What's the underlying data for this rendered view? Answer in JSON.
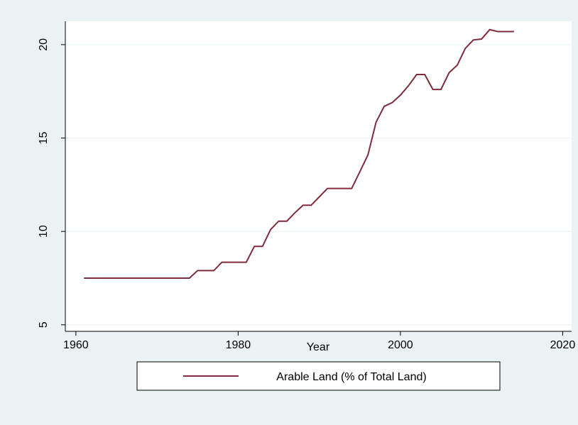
{
  "chart_data": {
    "type": "line",
    "xlabel": "Year",
    "x": [
      1961,
      1962,
      1963,
      1964,
      1965,
      1966,
      1967,
      1968,
      1969,
      1970,
      1971,
      1972,
      1973,
      1974,
      1975,
      1976,
      1977,
      1978,
      1979,
      1980,
      1981,
      1982,
      1983,
      1984,
      1985,
      1986,
      1987,
      1988,
      1989,
      1990,
      1991,
      1992,
      1993,
      1994,
      1995,
      1996,
      1997,
      1998,
      1999,
      2000,
      2001,
      2002,
      2003,
      2004,
      2005,
      2006,
      2007,
      2008,
      2009,
      2010,
      2011,
      2012,
      2013,
      2014
    ],
    "series": [
      {
        "name": "Arable Land (% of Total Land)",
        "color": "#7f2d3d",
        "values": [
          7.5,
          7.5,
          7.5,
          7.5,
          7.5,
          7.5,
          7.5,
          7.5,
          7.5,
          7.5,
          7.5,
          7.5,
          7.5,
          7.5,
          7.9,
          7.9,
          7.9,
          8.35,
          8.35,
          8.35,
          8.35,
          9.2,
          9.2,
          10.1,
          10.55,
          10.55,
          11.0,
          11.4,
          11.4,
          11.85,
          12.3,
          12.3,
          12.3,
          12.3,
          13.2,
          14.1,
          15.85,
          16.7,
          16.9,
          17.3,
          17.8,
          18.4,
          18.4,
          17.6,
          17.6,
          18.5,
          18.9,
          19.8,
          20.25,
          20.3,
          20.8,
          20.7,
          20.7,
          20.7
        ]
      }
    ],
    "xlim": [
      1958.7,
      2021.1
    ],
    "xticks": [
      1960,
      1980,
      2000,
      2020
    ],
    "ylim": [
      4.65,
      21.25
    ],
    "yticks": [
      5,
      10,
      15,
      20
    ],
    "grid": true,
    "legend": "bottom"
  }
}
